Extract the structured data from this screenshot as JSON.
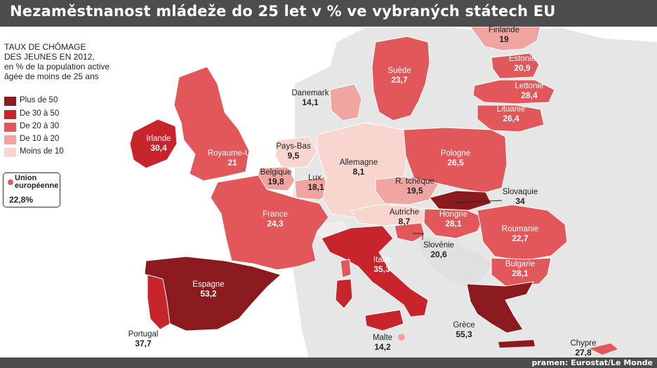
{
  "title": "Nezaměstnanost mládeže do 25 let v % ve vybraných státech EU",
  "source": "pramen: Eurostat/Le Monde",
  "legend": {
    "title_lines": [
      "TAUX DE CHÔMAGE",
      "DES JEUNES EN 2012,",
      "en % de la population active",
      "âgée de moins de 25 ans"
    ],
    "items": [
      {
        "label": "Plus de 50",
        "color": "#8b1a1e"
      },
      {
        "label": "De 30 à 50",
        "color": "#c8242b"
      },
      {
        "label": "De 20 à 30",
        "color": "#e2585a"
      },
      {
        "label": "De 10 à 20",
        "color": "#efa4a0"
      },
      {
        "label": "Moins de 10",
        "color": "#f8d6cf"
      }
    ],
    "eu": {
      "label": "Union européenne",
      "value": "22,8%"
    }
  },
  "countries": {
    "finlande": {
      "name": "Finlande",
      "value": "19"
    },
    "suede": {
      "name": "Suède",
      "value": "23,7"
    },
    "estonie": {
      "name": "Estonie",
      "value": "20,9"
    },
    "lettonie": {
      "name": "Lettonie",
      "value": "28,4"
    },
    "lituanie": {
      "name": "Lituanie",
      "value": "26,4"
    },
    "danemark": {
      "name": "Danemark",
      "value": "14,1"
    },
    "irlande": {
      "name": "Irlande",
      "value": "30,4"
    },
    "royaume_uni": {
      "name": "Royaume-Uni",
      "value": "21"
    },
    "pays_bas": {
      "name": "Pays-Bas",
      "value": "9,5"
    },
    "allemagne": {
      "name": "Allemagne",
      "value": "8,1"
    },
    "pologne": {
      "name": "Pologne",
      "value": "26,5"
    },
    "belgique": {
      "name": "Belgique",
      "value": "19,8"
    },
    "lux": {
      "name": "Lux.",
      "value": "18,1"
    },
    "r_tcheque": {
      "name": "R. tchèque",
      "value": "19,5"
    },
    "slovaquie": {
      "name": "Slovaquie",
      "value": "34"
    },
    "france": {
      "name": "France",
      "value": "24,3"
    },
    "autriche": {
      "name": "Autriche",
      "value": "8,7"
    },
    "hongrie": {
      "name": "Hongrie",
      "value": "28,1"
    },
    "slovenie": {
      "name": "Slovénie",
      "value": "20,6"
    },
    "roumanie": {
      "name": "Roumanie",
      "value": "22,7"
    },
    "bulgarie": {
      "name": "Bulgarie",
      "value": "28,1"
    },
    "italie": {
      "name": "Italie",
      "value": "35,3"
    },
    "espagne": {
      "name": "Espagne",
      "value": "53,2"
    },
    "portugal": {
      "name": "Portugal",
      "value": "37,7"
    },
    "malte": {
      "name": "Malte",
      "value": "14,2"
    },
    "grece": {
      "name": "Grèce",
      "value": "55,3"
    },
    "chypre": {
      "name": "Chypre",
      "value": "27,8"
    }
  }
}
